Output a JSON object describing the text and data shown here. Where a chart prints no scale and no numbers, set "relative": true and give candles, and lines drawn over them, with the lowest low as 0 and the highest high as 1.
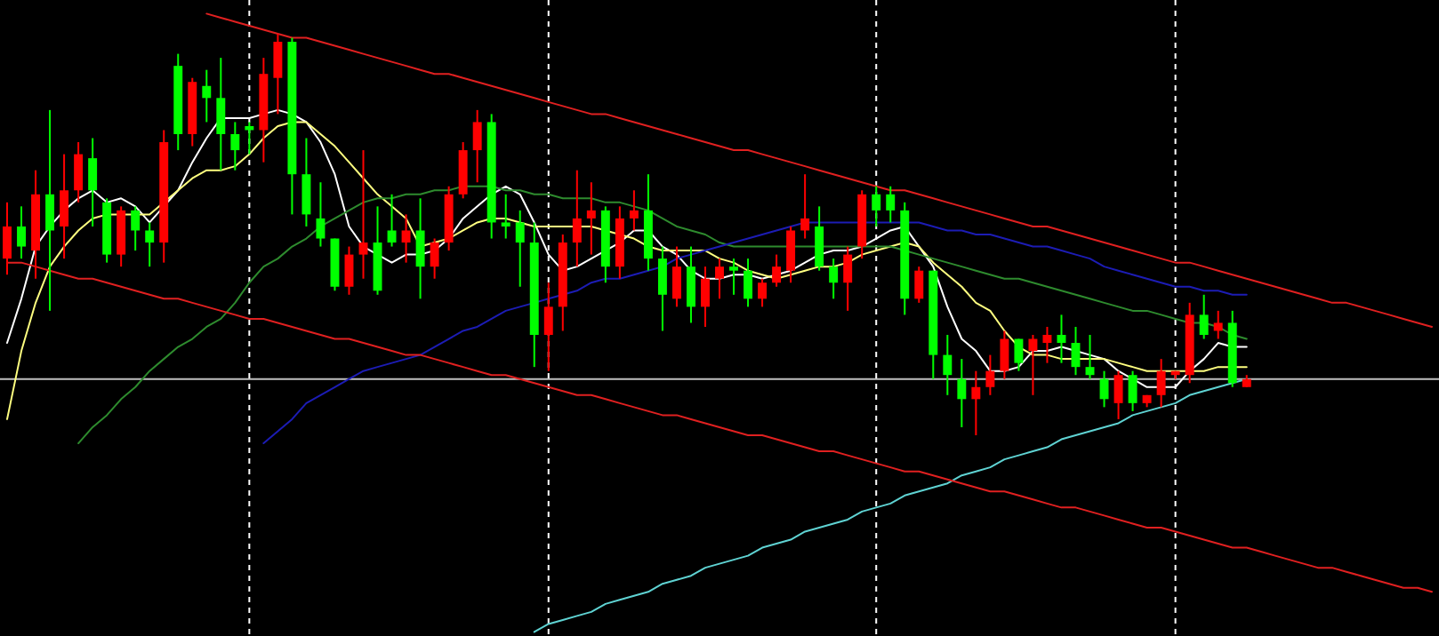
{
  "chart_data": {
    "type": "candlestick",
    "relative": true,
    "grid": "x",
    "categories": [
      null,
      null,
      null,
      null,
      null,
      null,
      null,
      null,
      null,
      null,
      null,
      null,
      null,
      null,
      null,
      null,
      null,
      null,
      null,
      null,
      null,
      null,
      null,
      null,
      null,
      null,
      null,
      null,
      null,
      null,
      null,
      null,
      null,
      null,
      null,
      null,
      null,
      null,
      null,
      null,
      null,
      null,
      null,
      null,
      null,
      null,
      null,
      null,
      null,
      null,
      null,
      null,
      null,
      null,
      null,
      null,
      null,
      null,
      null,
      null,
      null,
      null,
      null,
      null,
      null,
      null,
      null,
      null,
      null,
      null,
      null,
      null,
      null,
      null,
      null,
      null,
      null,
      null,
      null,
      null,
      null,
      null,
      null,
      null,
      null,
      null,
      null,
      null,
      null,
      null,
      null,
      null,
      null,
      null,
      null,
      null,
      null,
      null,
      null,
      null,
      null
    ],
    "ohlc": [
      [
        0.44,
        0.58,
        0.4,
        0.52
      ],
      [
        0.52,
        0.57,
        0.44,
        0.47
      ],
      [
        0.46,
        0.66,
        0.39,
        0.6
      ],
      [
        0.6,
        0.81,
        0.31,
        0.51
      ],
      [
        0.52,
        0.7,
        0.44,
        0.61
      ],
      [
        0.61,
        0.73,
        0.58,
        0.7
      ],
      [
        0.69,
        0.74,
        0.52,
        0.61
      ],
      [
        0.58,
        0.59,
        0.43,
        0.45
      ],
      [
        0.45,
        0.57,
        0.42,
        0.56
      ],
      [
        0.56,
        0.57,
        0.46,
        0.51
      ],
      [
        0.51,
        0.53,
        0.42,
        0.48
      ],
      [
        0.48,
        0.76,
        0.43,
        0.73
      ],
      [
        0.92,
        0.95,
        0.71,
        0.75
      ],
      [
        0.75,
        0.89,
        0.72,
        0.88
      ],
      [
        0.87,
        0.91,
        0.78,
        0.84
      ],
      [
        0.84,
        0.94,
        0.66,
        0.75
      ],
      [
        0.75,
        0.78,
        0.66,
        0.71
      ],
      [
        0.77,
        0.78,
        0.7,
        0.76
      ],
      [
        0.76,
        0.94,
        0.68,
        0.9
      ],
      [
        0.89,
        1.0,
        0.8,
        0.98
      ],
      [
        0.98,
        0.99,
        0.55,
        0.65
      ],
      [
        0.65,
        0.74,
        0.52,
        0.55
      ],
      [
        0.54,
        0.63,
        0.47,
        0.49
      ],
      [
        0.49,
        0.49,
        0.36,
        0.37
      ],
      [
        0.37,
        0.47,
        0.35,
        0.45
      ],
      [
        0.45,
        0.71,
        0.39,
        0.48
      ],
      [
        0.48,
        0.57,
        0.35,
        0.36
      ],
      [
        0.51,
        0.6,
        0.47,
        0.48
      ],
      [
        0.48,
        0.55,
        0.43,
        0.51
      ],
      [
        0.51,
        0.59,
        0.34,
        0.42
      ],
      [
        0.42,
        0.49,
        0.39,
        0.48
      ],
      [
        0.48,
        0.62,
        0.46,
        0.6
      ],
      [
        0.6,
        0.73,
        0.59,
        0.71
      ],
      [
        0.71,
        0.81,
        0.63,
        0.78
      ],
      [
        0.78,
        0.8,
        0.49,
        0.53
      ],
      [
        0.53,
        0.6,
        0.49,
        0.52
      ],
      [
        0.53,
        0.56,
        0.37,
        0.48
      ],
      [
        0.48,
        0.53,
        0.17,
        0.25
      ],
      [
        0.25,
        0.38,
        0.16,
        0.32
      ],
      [
        0.32,
        0.5,
        0.26,
        0.48
      ],
      [
        0.48,
        0.66,
        0.42,
        0.54
      ],
      [
        0.54,
        0.63,
        0.45,
        0.56
      ],
      [
        0.56,
        0.57,
        0.38,
        0.42
      ],
      [
        0.42,
        0.57,
        0.39,
        0.54
      ],
      [
        0.54,
        0.61,
        0.51,
        0.56
      ],
      [
        0.56,
        0.65,
        0.41,
        0.44
      ],
      [
        0.44,
        0.47,
        0.26,
        0.35
      ],
      [
        0.34,
        0.47,
        0.32,
        0.42
      ],
      [
        0.42,
        0.47,
        0.28,
        0.32
      ],
      [
        0.32,
        0.42,
        0.27,
        0.39
      ],
      [
        0.39,
        0.44,
        0.34,
        0.42
      ],
      [
        0.42,
        0.44,
        0.35,
        0.41
      ],
      [
        0.41,
        0.44,
        0.32,
        0.34
      ],
      [
        0.34,
        0.39,
        0.32,
        0.38
      ],
      [
        0.38,
        0.45,
        0.37,
        0.42
      ],
      [
        0.41,
        0.52,
        0.38,
        0.51
      ],
      [
        0.51,
        0.65,
        0.49,
        0.54
      ],
      [
        0.52,
        0.57,
        0.41,
        0.42
      ],
      [
        0.42,
        0.44,
        0.34,
        0.38
      ],
      [
        0.38,
        0.47,
        0.31,
        0.45
      ],
      [
        0.47,
        0.61,
        0.44,
        0.6
      ],
      [
        0.6,
        0.62,
        0.52,
        0.56
      ],
      [
        0.6,
        0.62,
        0.53,
        0.56
      ],
      [
        0.56,
        0.58,
        0.3,
        0.34
      ],
      [
        0.34,
        0.42,
        0.33,
        0.41
      ],
      [
        0.41,
        0.41,
        0.14,
        0.2
      ],
      [
        0.2,
        0.25,
        0.1,
        0.15
      ],
      [
        0.14,
        0.19,
        0.02,
        0.09
      ],
      [
        0.09,
        0.16,
        0,
        0.12
      ],
      [
        0.12,
        0.2,
        0.1,
        0.16
      ],
      [
        0.16,
        0.26,
        0.14,
        0.24
      ],
      [
        0.24,
        0.24,
        0.16,
        0.18
      ],
      [
        0.21,
        0.25,
        0.1,
        0.24
      ],
      [
        0.23,
        0.27,
        0.18,
        0.25
      ],
      [
        0.25,
        0.3,
        0.18,
        0.23
      ],
      [
        0.23,
        0.27,
        0.15,
        0.17
      ],
      [
        0.17,
        0.25,
        0.14,
        0.15
      ],
      [
        0.14,
        0.16,
        0.07,
        0.09
      ],
      [
        0.08,
        0.16,
        0.04,
        0.15
      ],
      [
        0.15,
        0.16,
        0.06,
        0.08
      ],
      [
        0.08,
        0.1,
        0.07,
        0.1
      ],
      [
        0.1,
        0.19,
        0.07,
        0.16
      ],
      [
        0.15,
        0.16,
        0.14,
        0.16
      ],
      [
        0.15,
        0.33,
        0.13,
        0.3
      ],
      [
        0.3,
        0.35,
        0.24,
        0.25
      ],
      [
        0.26,
        0.31,
        0.24,
        0.28
      ],
      [
        0.28,
        0.31,
        0.12,
        0.13
      ],
      [
        0.12,
        0.15,
        0.12,
        0.14
      ],
      null,
      null,
      null,
      null,
      null,
      null,
      null,
      null,
      null,
      null,
      null,
      null,
      null
    ],
    "colors": [
      "#ff0000",
      "#00ff00",
      "#ff0000",
      "#00ff00",
      "#ff0000",
      "#ff0000",
      "#00ff00",
      "#00ff00",
      "#ff0000",
      "#00ff00",
      "#00ff00",
      "#ff0000",
      "#00ff00",
      "#ff0000",
      "#00ff00",
      "#00ff00",
      "#00ff00",
      "#00ff00",
      "#ff0000",
      "#ff0000",
      "#00ff00",
      "#00ff00",
      "#00ff00",
      "#00ff00",
      "#ff0000",
      "#ff0000",
      "#00ff00",
      "#00ff00",
      "#ff0000",
      "#00ff00",
      "#ff0000",
      "#ff0000",
      "#ff0000",
      "#ff0000",
      "#00ff00",
      "#00ff00",
      "#00ff00",
      "#00ff00",
      "#ff0000",
      "#ff0000",
      "#ff0000",
      "#ff0000",
      "#00ff00",
      "#ff0000",
      "#ff0000",
      "#00ff00",
      "#00ff00",
      "#ff0000",
      "#00ff00",
      "#ff0000",
      "#ff0000",
      "#00ff00",
      "#00ff00",
      "#ff0000",
      "#ff0000",
      "#ff0000",
      "#ff0000",
      "#00ff00",
      "#00ff00",
      "#ff0000",
      "#ff0000",
      "#00ff00",
      "#00ff00",
      "#00ff00",
      "#ff0000",
      "#00ff00",
      "#00ff00",
      "#00ff00",
      "#ff0000",
      "#ff0000",
      "#ff0000",
      "#00ff00",
      "#ff0000",
      "#ff0000",
      "#00ff00",
      "#00ff00",
      "#00ff00",
      "#00ff00",
      "#ff0000",
      "#00ff00",
      "#ff0000",
      "#ff0000",
      "#ff0000",
      "#ff0000",
      "#00ff00",
      "#ff0000",
      "#00ff00",
      "#ff0000",
      null,
      null,
      null,
      null,
      null,
      null,
      null,
      null,
      null,
      null,
      null,
      null,
      null
    ],
    "series": [
      {
        "type": "line",
        "color": "#ffffff",
        "values": [
          0.23,
          0.34,
          0.47,
          0.52,
          0.56,
          0.59,
          0.61,
          0.58,
          0.59,
          0.57,
          0.53,
          0.57,
          0.61,
          0.68,
          0.74,
          0.79,
          0.79,
          0.79,
          0.8,
          0.81,
          0.8,
          0.78,
          0.73,
          0.65,
          0.52,
          0.47,
          0.45,
          0.43,
          0.45,
          0.45,
          0.46,
          0.49,
          0.54,
          0.57,
          0.6,
          0.62,
          0.6,
          0.53,
          0.45,
          0.41,
          0.42,
          0.44,
          0.46,
          0.48,
          0.51,
          0.51,
          0.47,
          0.45,
          0.41,
          0.39,
          0.39,
          0.4,
          0.4,
          0.39,
          0.4,
          0.41,
          0.43,
          0.45,
          0.46,
          0.46,
          0.47,
          0.49,
          0.51,
          0.52,
          0.47,
          0.42,
          0.32,
          0.24,
          0.21,
          0.16,
          0.16,
          0.17,
          0.21,
          0.21,
          0.22,
          0.21,
          0.2,
          0.19,
          0.16,
          0.14,
          0.12,
          0.12,
          0.12,
          0.16,
          0.19,
          0.23,
          0.22,
          0.22,
          null,
          null,
          null,
          null,
          null,
          null,
          null,
          null,
          null,
          null,
          null,
          null,
          null
        ]
      },
      {
        "type": "line",
        "color": "#ffff80",
        "values": [
          0.04,
          0.21,
          0.33,
          0.42,
          0.47,
          0.51,
          0.54,
          0.55,
          0.55,
          0.55,
          0.55,
          0.58,
          0.61,
          0.64,
          0.66,
          0.66,
          0.67,
          0.7,
          0.74,
          0.77,
          0.78,
          0.78,
          0.75,
          0.72,
          0.68,
          0.64,
          0.6,
          0.57,
          0.54,
          0.47,
          0.48,
          0.49,
          0.51,
          0.53,
          0.54,
          0.54,
          0.53,
          0.52,
          0.52,
          0.52,
          0.52,
          0.52,
          0.51,
          0.5,
          0.49,
          0.47,
          0.46,
          0.46,
          0.46,
          0.46,
          0.44,
          0.43,
          0.41,
          0.4,
          0.39,
          0.4,
          0.41,
          0.42,
          0.42,
          0.43,
          0.45,
          0.46,
          0.47,
          0.48,
          0.47,
          0.43,
          0.4,
          0.37,
          0.33,
          0.31,
          0.26,
          0.22,
          0.2,
          0.2,
          0.19,
          0.19,
          0.19,
          0.19,
          0.18,
          0.17,
          0.16,
          0.16,
          0.16,
          0.16,
          0.16,
          0.17,
          0.17,
          0.17,
          null,
          null,
          null,
          null,
          null,
          null,
          null,
          null,
          null,
          null,
          null,
          null,
          null
        ]
      },
      {
        "type": "line",
        "color": "#2e8b2e",
        "values": [
          null,
          null,
          null,
          null,
          null,
          -0.02,
          0.02,
          0.05,
          0.09,
          0.12,
          0.16,
          0.19,
          0.22,
          0.24,
          0.27,
          0.29,
          0.33,
          0.38,
          0.42,
          0.44,
          0.47,
          0.49,
          0.52,
          0.54,
          0.56,
          0.58,
          0.59,
          0.59,
          0.6,
          0.6,
          0.61,
          0.61,
          0.62,
          0.62,
          0.62,
          0.61,
          0.61,
          0.6,
          0.6,
          0.59,
          0.59,
          0.59,
          0.58,
          0.58,
          0.57,
          0.56,
          0.54,
          0.52,
          0.51,
          0.5,
          0.48,
          0.47,
          0.47,
          0.47,
          0.47,
          0.47,
          0.47,
          0.47,
          0.47,
          0.47,
          0.47,
          0.47,
          0.47,
          0.46,
          0.45,
          0.44,
          0.43,
          0.42,
          0.41,
          0.4,
          0.39,
          0.39,
          0.38,
          0.37,
          0.36,
          0.35,
          0.34,
          0.33,
          0.32,
          0.31,
          0.31,
          0.3,
          0.29,
          0.28,
          0.28,
          0.27,
          0.25,
          0.24,
          null,
          null,
          null,
          null,
          null,
          null,
          null,
          null,
          null,
          null,
          null,
          null,
          null
        ]
      },
      {
        "type": "line",
        "color": "#1c1cb4",
        "values": [
          null,
          null,
          null,
          null,
          null,
          null,
          null,
          null,
          null,
          null,
          null,
          null,
          null,
          null,
          null,
          null,
          null,
          null,
          -0.02,
          0.01,
          0.04,
          0.08,
          0.1,
          0.12,
          0.14,
          0.16,
          0.17,
          0.18,
          0.19,
          0.2,
          0.22,
          0.24,
          0.26,
          0.27,
          0.29,
          0.31,
          0.32,
          0.33,
          0.34,
          0.35,
          0.36,
          0.38,
          0.39,
          0.39,
          0.4,
          0.41,
          0.42,
          0.44,
          0.45,
          0.46,
          0.47,
          0.48,
          0.49,
          0.5,
          0.51,
          0.52,
          0.53,
          0.53,
          0.53,
          0.53,
          0.53,
          0.53,
          0.53,
          0.53,
          0.53,
          0.52,
          0.51,
          0.51,
          0.5,
          0.5,
          0.49,
          0.48,
          0.47,
          0.47,
          0.46,
          0.45,
          0.44,
          0.42,
          0.41,
          0.4,
          0.39,
          0.38,
          0.37,
          0.37,
          0.36,
          0.36,
          0.35,
          0.35,
          null,
          null,
          null,
          null,
          null,
          null,
          null,
          null,
          null,
          null,
          null,
          null,
          null
        ]
      },
      {
        "type": "line",
        "color": "#5fd3d3",
        "values": [
          null,
          null,
          null,
          null,
          null,
          null,
          null,
          null,
          null,
          null,
          null,
          null,
          null,
          null,
          null,
          null,
          null,
          null,
          null,
          null,
          null,
          null,
          null,
          null,
          null,
          null,
          null,
          null,
          null,
          null,
          null,
          null,
          null,
          null,
          null,
          null,
          null,
          -0.49,
          -0.47,
          -0.46,
          -0.45,
          -0.44,
          -0.42,
          -0.41,
          -0.4,
          -0.39,
          -0.37,
          -0.36,
          -0.35,
          -0.33,
          -0.32,
          -0.31,
          -0.3,
          -0.28,
          -0.27,
          -0.26,
          -0.24,
          -0.23,
          -0.22,
          -0.21,
          -0.19,
          -0.18,
          -0.17,
          -0.15,
          -0.14,
          -0.13,
          -0.12,
          -0.1,
          -0.09,
          -0.08,
          -0.06,
          -0.05,
          -0.04,
          -0.03,
          -0.01,
          0.0,
          0.01,
          0.02,
          0.03,
          0.05,
          0.06,
          0.07,
          0.08,
          0.1,
          0.11,
          0.12,
          0.13,
          0.14,
          null,
          null,
          null,
          null,
          null,
          null,
          null,
          null,
          null,
          null,
          null,
          null,
          null
        ]
      },
      {
        "type": "line",
        "color": "#e02020",
        "values": [
          null,
          null,
          null,
          null,
          null,
          null,
          null,
          null,
          null,
          null,
          null,
          null,
          null,
          null,
          1.05,
          1.04,
          1.03,
          1.02,
          1.01,
          1.0,
          0.99,
          0.99,
          0.98,
          0.97,
          0.96,
          0.95,
          0.94,
          0.93,
          0.92,
          0.91,
          0.9,
          0.9,
          0.89,
          0.88,
          0.87,
          0.86,
          0.85,
          0.84,
          0.83,
          0.82,
          0.81,
          0.8,
          0.8,
          0.79,
          0.78,
          0.77,
          0.76,
          0.75,
          0.74,
          0.73,
          0.72,
          0.71,
          0.71,
          0.7,
          0.69,
          0.68,
          0.67,
          0.66,
          0.65,
          0.64,
          0.63,
          0.62,
          0.61,
          0.61,
          0.6,
          0.59,
          0.58,
          0.57,
          0.56,
          0.55,
          0.54,
          0.53,
          0.52,
          0.52,
          0.51,
          0.5,
          0.49,
          0.48,
          0.47,
          0.46,
          0.45,
          0.44,
          0.43,
          0.43,
          0.42,
          0.41,
          0.4,
          0.39,
          0.38,
          0.37,
          0.36,
          0.35,
          0.34,
          0.33,
          0.33,
          0.32,
          0.31,
          0.3,
          0.29,
          0.28,
          0.27
        ]
      },
      {
        "type": "line",
        "color": "#e02020",
        "values": [
          0.43,
          0.43,
          0.42,
          0.41,
          0.4,
          0.39,
          0.39,
          0.38,
          0.37,
          0.36,
          0.35,
          0.34,
          0.34,
          0.33,
          0.32,
          0.31,
          0.3,
          0.29,
          0.29,
          0.28,
          0.27,
          0.26,
          0.25,
          0.24,
          0.24,
          0.23,
          0.22,
          0.21,
          0.2,
          0.2,
          0.19,
          0.18,
          0.17,
          0.16,
          0.15,
          0.15,
          0.14,
          0.13,
          0.12,
          0.11,
          0.1,
          0.1,
          0.09,
          0.08,
          0.07,
          0.06,
          0.05,
          0.05,
          0.04,
          0.03,
          0.02,
          0.01,
          0.0,
          0.0,
          -0.01,
          -0.02,
          -0.03,
          -0.04,
          -0.04,
          -0.05,
          -0.06,
          -0.07,
          -0.08,
          -0.09,
          -0.09,
          -0.1,
          -0.11,
          -0.12,
          -0.13,
          -0.14,
          -0.14,
          -0.15,
          -0.16,
          -0.17,
          -0.18,
          -0.18,
          -0.19,
          -0.2,
          -0.21,
          -0.22,
          -0.23,
          -0.23,
          -0.24,
          -0.25,
          -0.26,
          -0.27,
          -0.28,
          -0.28,
          -0.29,
          -0.3,
          -0.31,
          -0.32,
          -0.33,
          -0.33,
          -0.34,
          -0.35,
          -0.36,
          -0.37,
          -0.38,
          -0.38,
          -0.39
        ]
      }
    ],
    "ref_lines": [
      {
        "axis": "y",
        "value": 0.14,
        "color": "#c0c0c0"
      }
    ]
  }
}
